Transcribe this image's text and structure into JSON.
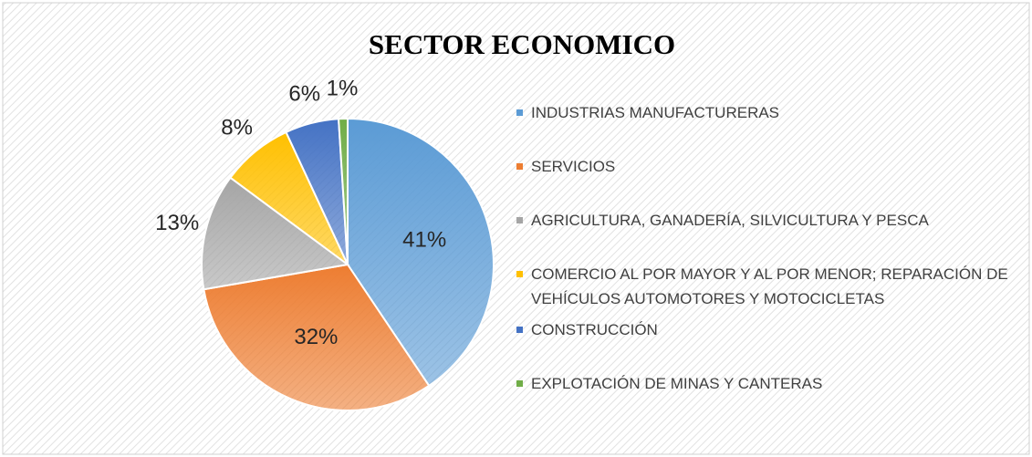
{
  "chart_data": {
    "type": "pie",
    "title": "SECTOR ECONOMICO",
    "categories": [
      "INDUSTRIAS MANUFACTURERAS",
      "SERVICIOS",
      "AGRICULTURA, GANADERÍA, SILVICULTURA Y PESCA",
      "COMERCIO AL POR MAYOR Y AL POR MENOR; REPARACIÓN DE VEHÍCULOS AUTOMOTORES Y MOTOCICLETAS",
      "CONSTRUCCIÓN",
      "EXPLOTACIÓN DE MINAS Y CANTERAS"
    ],
    "values": [
      41,
      32,
      13,
      8,
      6,
      1
    ],
    "value_labels": [
      "41%",
      "32%",
      "13%",
      "8%",
      "6%",
      "1%"
    ],
    "colors": [
      "#5b9bd5",
      "#ed7d31",
      "#a5a5a5",
      "#ffc000",
      "#4472c4",
      "#70ad47"
    ],
    "legend": "right"
  }
}
